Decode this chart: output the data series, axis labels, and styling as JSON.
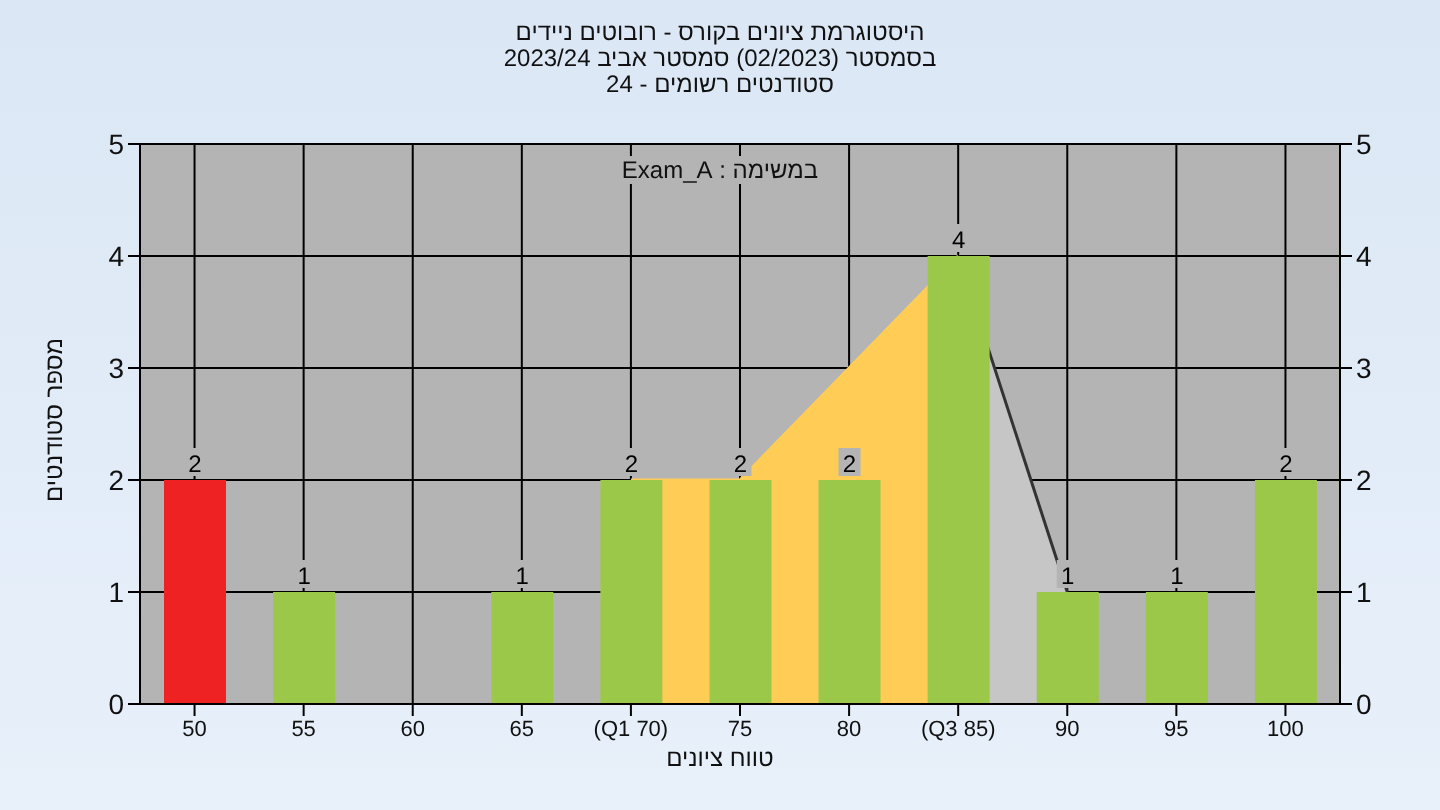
{
  "chart_data": {
    "type": "bar",
    "title": "היסטוגרמת ציונים בקורס - רובוטים ניידים",
    "subtitle": "בסמסטר  (02/2023)  סמסטר אביב 2023/24\nסטודנטים רשומים - 24",
    "xlabel": "טווח ציונים",
    "ylabel": "מספר סטודנטים",
    "annotations": [
      "במשימה : Exam_A"
    ],
    "categories": [
      "50",
      "55",
      "60",
      "65",
      "(Q1 70)",
      "75",
      "80",
      "(Q3 85)",
      "90",
      "95",
      "100"
    ],
    "series": [
      {
        "type": "area",
        "color": "#c6c6c6",
        "values": [
          null,
          null,
          null,
          null,
          null,
          null,
          null,
          4,
          1,
          null,
          null
        ]
      },
      {
        "type": "area",
        "color": "#ffcc55",
        "values": [
          null,
          null,
          null,
          null,
          2,
          2,
          null,
          4,
          null,
          null,
          null
        ]
      },
      {
        "colors": [
          "#ee2222",
          "#9cc84a",
          "#9cc84a",
          "#9cc84a",
          "#9cc84a",
          "#9cc84a",
          "#9cc84a",
          "#9cc84a",
          "#9cc84a",
          "#9cc84a",
          "#9cc84a"
        ],
        "values": [
          2,
          1,
          0,
          1,
          2,
          2,
          2,
          4,
          1,
          1,
          2
        ],
        "value_labels": [
          "2",
          "1",
          null,
          "1",
          "2",
          "2",
          "2",
          "4",
          "1",
          "1",
          "2"
        ]
      }
    ],
    "ylim": [
      0,
      5
    ],
    "yticks": [
      0,
      1,
      2,
      3,
      4,
      5
    ],
    "y2lim": [
      0,
      5
    ],
    "y2ticks": [
      0,
      1,
      2,
      3,
      4,
      5
    ],
    "grid": true
  }
}
